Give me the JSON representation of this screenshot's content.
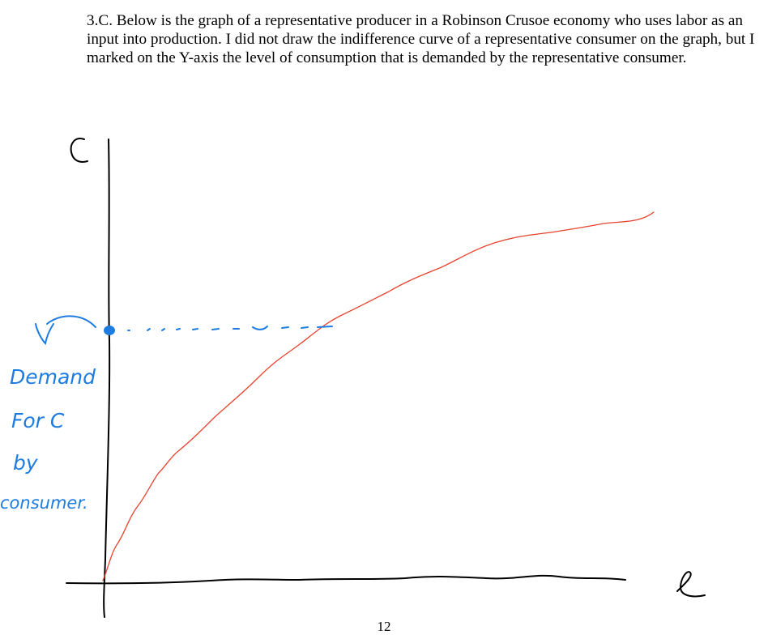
{
  "question": {
    "text": "3.C.  Below is the graph of a representative producer in a Robinson Crusoe economy who uses labor as an input into production. I did not draw the indifference curve of a representative consumer on the graph, but I marked on the Y-axis the level of consumption that is demanded by the representative consumer."
  },
  "figure": {
    "y_axis_label": "C",
    "x_axis_label": "ℓ",
    "annotation_lines": [
      "Demand",
      "For C",
      "by",
      "consumer."
    ],
    "colors": {
      "curve": "#e8432e",
      "annotation": "#1e7ce0",
      "axis": "#000000"
    }
  },
  "page_number": "12"
}
